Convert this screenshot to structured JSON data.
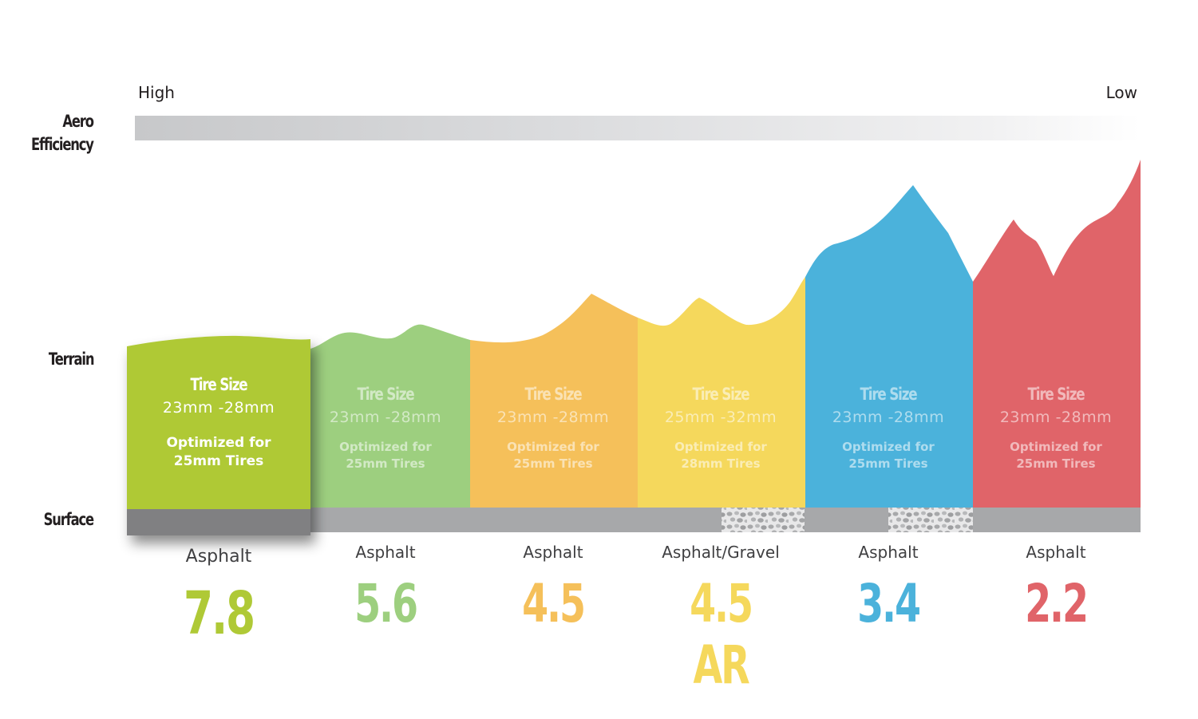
{
  "axis": {
    "aero_label": "Aero\nEfficiency",
    "high_label": "High",
    "low_label": "Low",
    "terrain_label": "Terrain",
    "surface_label": "Surface"
  },
  "colors": {
    "green": "#afc936",
    "light_green": "#a2d18a",
    "orange": "#f6c564",
    "yellow": "#f6dd66",
    "blue": "#4bb2db",
    "red": "#e06469",
    "surface_gray": "#a7a8aa",
    "surface_dark": "#808082"
  },
  "wheels": [
    {
      "tire_title": "Tire Size",
      "tire_size": "23mm -28mm",
      "optimized": "Optimized for\n25mm Tires",
      "surface": "Asphalt",
      "rating": "7.8",
      "color": "#afc936"
    },
    {
      "tire_title": "Tire Size",
      "tire_size": "23mm -28mm",
      "optimized": "Optimized for\n25mm Tires",
      "surface": "Asphalt",
      "rating": "5.6",
      "color": "#9dcf7f"
    },
    {
      "tire_title": "Tire Size",
      "tire_size": "23mm -28mm",
      "optimized": "Optimized for\n25mm Tires",
      "surface": "Asphalt",
      "rating": "4.5",
      "color": "#f5c05a"
    },
    {
      "tire_title": "Tire Size",
      "tire_size": "25mm -32mm",
      "optimized": "Optimized for\n28mm Tires",
      "surface": "Asphalt/Gravel",
      "rating": "4.5 AR",
      "color": "#f5d85c"
    },
    {
      "tire_title": "Tire Size",
      "tire_size": "23mm -28mm",
      "optimized": "Optimized for\n25mm Tires",
      "surface": "Asphalt",
      "rating": "3.4",
      "color": "#4bb2db"
    },
    {
      "tire_title": "Tire Size",
      "tire_size": "23mm -28mm",
      "optimized": "Optimized for\n25mm Tires",
      "surface": "Asphalt",
      "rating": "2.2",
      "color": "#e06469"
    }
  ]
}
